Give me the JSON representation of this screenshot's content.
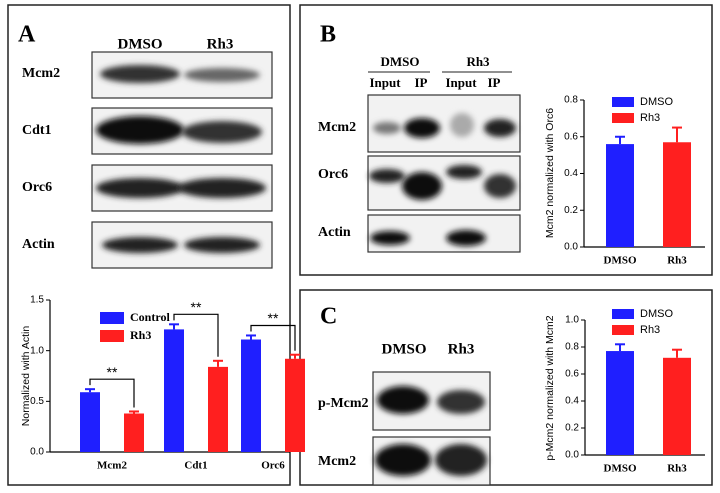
{
  "panels": [
    {
      "label": "A",
      "lanes": [
        "DMSO",
        "Rh3"
      ],
      "rows": [
        "Mcm2",
        "Cdt1",
        "Orc6",
        "Actin"
      ]
    },
    {
      "label": "B",
      "lanes": [
        "DMSO",
        "Rh3"
      ],
      "sublanes": [
        "Input",
        "IP",
        "Input",
        "IP"
      ],
      "rows": [
        "Mcm2",
        "Orc6",
        "Actin"
      ]
    },
    {
      "label": "C",
      "lanes": [
        "DMSO",
        "Rh3"
      ],
      "rows": [
        "p-Mcm2",
        "Mcm2"
      ]
    }
  ],
  "chart_data": [
    {
      "type": "bar",
      "y_label": "Normalized with Actin",
      "categories": [
        "Mcm2",
        "Cdt1",
        "Orc6"
      ],
      "series": [
        {
          "name": "Control",
          "color": "#1f1fff",
          "values": [
            0.59,
            1.21,
            1.11
          ],
          "errors": [
            0.03,
            0.05,
            0.04
          ]
        },
        {
          "name": "Rh3",
          "color": "#ff1f1f",
          "values": [
            0.38,
            0.84,
            0.92
          ],
          "errors": [
            0.02,
            0.06,
            0.04
          ]
        }
      ],
      "annotations": [
        "**",
        "**",
        "**"
      ],
      "ylim": [
        0,
        1.5
      ],
      "yticks": [
        {
          "value": 0,
          "label": "0.0"
        },
        {
          "value": 0.5,
          "label": "0.5"
        },
        {
          "value": 1,
          "label": "1.0"
        },
        {
          "value": 1.5,
          "label": "1.5"
        }
      ]
    },
    {
      "type": "bar",
      "y_label": "Mcm2 normalized with Orc6",
      "categories": [
        "DMSO",
        "Rh3"
      ],
      "values": [
        0.56,
        0.57
      ],
      "errors": [
        0.04,
        0.08
      ],
      "colors": [
        "#1f1fff",
        "#ff1f1f"
      ],
      "ylim": [
        0,
        0.8
      ],
      "yticks": [
        {
          "value": 0,
          "label": "0.0"
        },
        0.2,
        0.4,
        0.6,
        0.8
      ]
    },
    {
      "type": "bar",
      "y_label": "p-Mcm2 normalized with Mcm2",
      "categories": [
        "DMSO",
        "Rh3"
      ],
      "values": [
        0.77,
        0.72
      ],
      "errors": [
        0.05,
        0.06
      ],
      "colors": [
        "#1f1fff",
        "#ff1f1f"
      ],
      "ylim": [
        0,
        1
      ],
      "yticks": [
        {
          "value": 0,
          "label": "0.0"
        },
        0.2,
        0.4,
        0.6,
        0.8,
        {
          "value": 1,
          "label": "1.0"
        }
      ]
    }
  ]
}
